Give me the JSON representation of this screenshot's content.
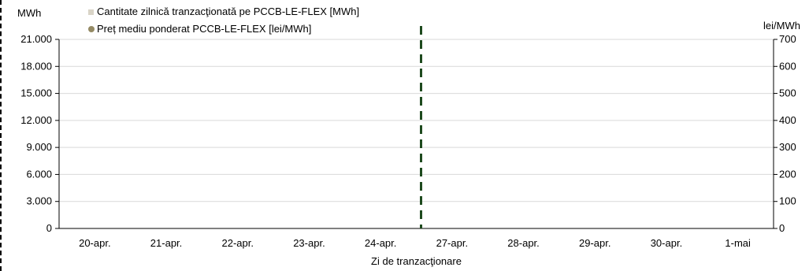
{
  "chart_data": {
    "type": "bar",
    "title": "",
    "xlabel": "Zi de tranzacţionare",
    "categories": [
      "20-apr.",
      "21-apr.",
      "22-apr.",
      "23-apr.",
      "24-apr.",
      "27-apr.",
      "28-apr.",
      "29-apr.",
      "30-apr.",
      "1-mai"
    ],
    "y_left": {
      "unit_label": "MWh",
      "ylim": [
        0,
        21000
      ],
      "ticks": [
        0,
        3000,
        6000,
        9000,
        12000,
        15000,
        18000,
        21000
      ],
      "tick_labels": [
        "0",
        "3.000",
        "6.000",
        "9.000",
        "12.000",
        "15.000",
        "18.000",
        "21.000"
      ]
    },
    "y_right": {
      "unit_label": "lei/MWh",
      "ylim": [
        0,
        700
      ],
      "ticks": [
        0,
        100,
        200,
        300,
        400,
        500,
        600,
        700
      ],
      "tick_labels": [
        "0",
        "100",
        "200",
        "300",
        "400",
        "500",
        "600",
        "700"
      ]
    },
    "series": [
      {
        "name": "Cantitate zilnică tranzacţionată pe PCCB-LE-FLEX [MWh]",
        "type": "bar",
        "axis": "left",
        "color": "#d9d4c7",
        "values": [
          null,
          null,
          null,
          null,
          null,
          null,
          null,
          null,
          null,
          null
        ]
      },
      {
        "name": "Preț mediu ponderat PCCB-LE-FLEX [lei/MWh]",
        "type": "scatter",
        "axis": "right",
        "color": "#948a64",
        "values": [
          null,
          null,
          null,
          null,
          null,
          null,
          null,
          null,
          null,
          null
        ]
      }
    ],
    "separator": {
      "between": [
        "24-apr.",
        "27-apr."
      ],
      "color": "#1e4a1e",
      "style": "dashed"
    },
    "grid": true,
    "legend_position": "top-left"
  }
}
